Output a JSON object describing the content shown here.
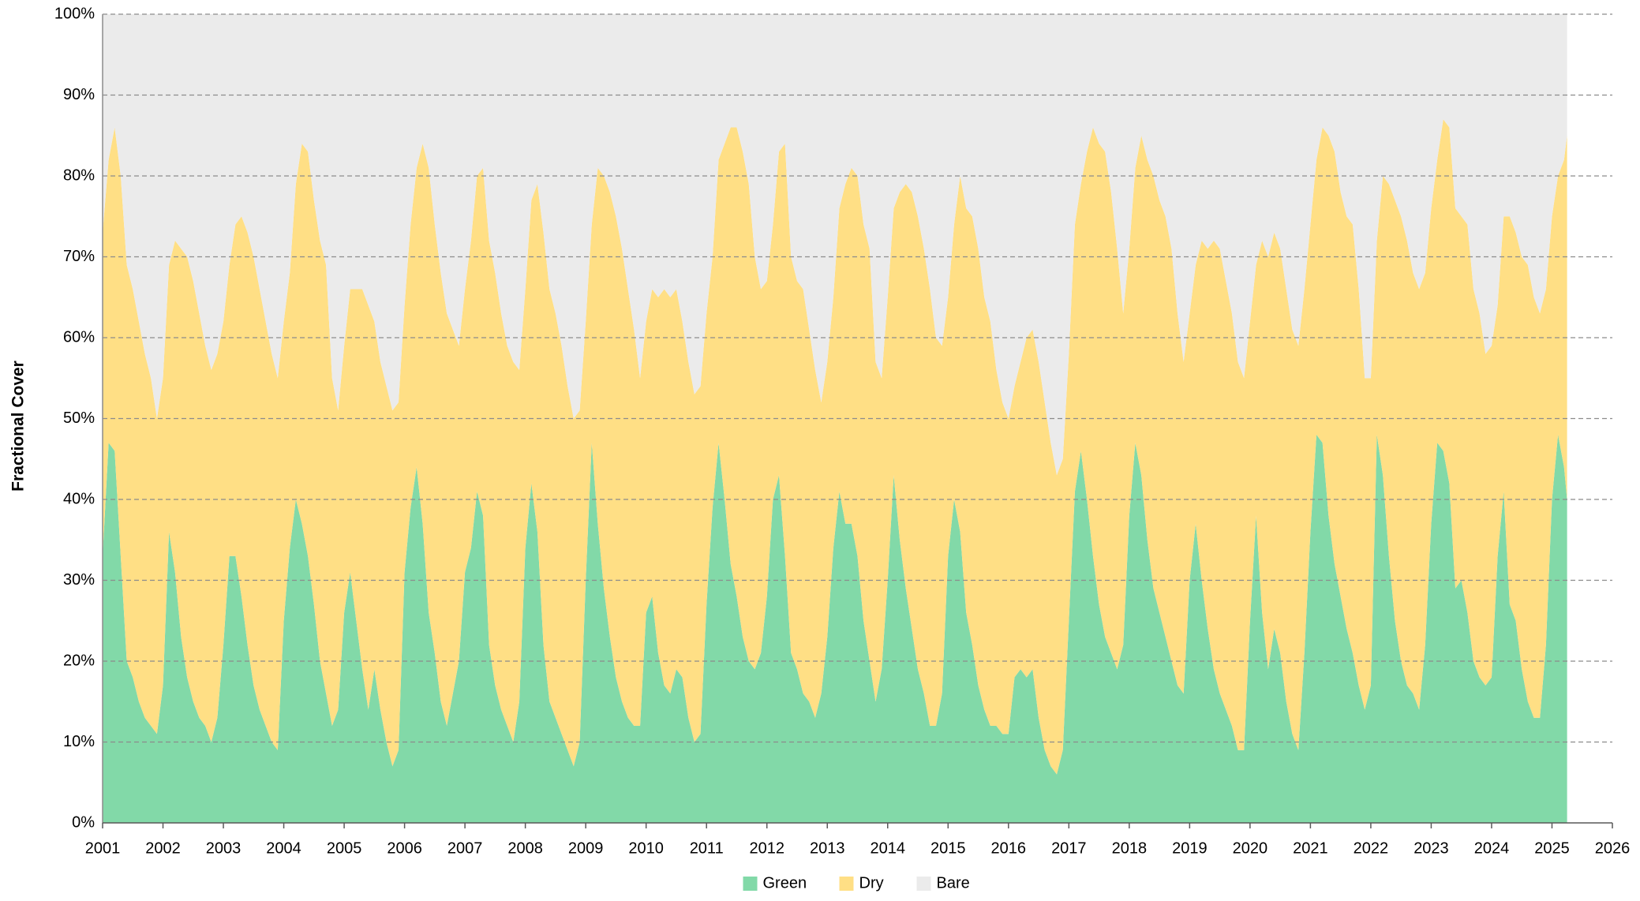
{
  "chart_data": {
    "type": "stacked_area",
    "y_label": "Fractional Cover",
    "x": [
      2001,
      2001.1,
      2001.2,
      2001.3,
      2001.4,
      2001.5,
      2001.6,
      2001.7,
      2001.8,
      2001.9,
      2002,
      2002.1,
      2002.2,
      2002.3,
      2002.4,
      2002.5,
      2002.6,
      2002.7,
      2002.8,
      2002.9,
      2003,
      2003.1,
      2003.2,
      2003.3,
      2003.4,
      2003.5,
      2003.6,
      2003.7,
      2003.8,
      2003.9,
      2004,
      2004.1,
      2004.2,
      2004.3,
      2004.4,
      2004.5,
      2004.6,
      2004.7,
      2004.8,
      2004.9,
      2005,
      2005.1,
      2005.2,
      2005.3,
      2005.4,
      2005.5,
      2005.6,
      2005.7,
      2005.8,
      2005.9,
      2006,
      2006.1,
      2006.2,
      2006.3,
      2006.4,
      2006.5,
      2006.6,
      2006.7,
      2006.8,
      2006.9,
      2007,
      2007.1,
      2007.2,
      2007.3,
      2007.4,
      2007.5,
      2007.6,
      2007.7,
      2007.8,
      2007.9,
      2008,
      2008.1,
      2008.2,
      2008.3,
      2008.4,
      2008.5,
      2008.6,
      2008.7,
      2008.8,
      2008.9,
      2009,
      2009.1,
      2009.2,
      2009.3,
      2009.4,
      2009.5,
      2009.6,
      2009.7,
      2009.8,
      2009.9,
      2010,
      2010.1,
      2010.2,
      2010.3,
      2010.4,
      2010.5,
      2010.6,
      2010.7,
      2010.8,
      2010.9,
      2011,
      2011.1,
      2011.2,
      2011.3,
      2011.4,
      2011.5,
      2011.6,
      2011.7,
      2011.8,
      2011.9,
      2012,
      2012.1,
      2012.2,
      2012.3,
      2012.4,
      2012.5,
      2012.6,
      2012.7,
      2012.8,
      2012.9,
      2013,
      2013.1,
      2013.2,
      2013.3,
      2013.4,
      2013.5,
      2013.6,
      2013.7,
      2013.8,
      2013.9,
      2014,
      2014.1,
      2014.2,
      2014.3,
      2014.4,
      2014.5,
      2014.6,
      2014.7,
      2014.8,
      2014.9,
      2015,
      2015.1,
      2015.2,
      2015.3,
      2015.4,
      2015.5,
      2015.6,
      2015.7,
      2015.8,
      2015.9,
      2016,
      2016.1,
      2016.2,
      2016.3,
      2016.4,
      2016.5,
      2016.6,
      2016.7,
      2016.8,
      2016.9,
      2017,
      2017.1,
      2017.2,
      2017.3,
      2017.4,
      2017.5,
      2017.6,
      2017.7,
      2017.8,
      2017.9,
      2018,
      2018.1,
      2018.2,
      2018.3,
      2018.4,
      2018.5,
      2018.6,
      2018.7,
      2018.8,
      2018.9,
      2019,
      2019.1,
      2019.2,
      2019.3,
      2019.4,
      2019.5,
      2019.6,
      2019.7,
      2019.8,
      2019.9,
      2020,
      2020.1,
      2020.2,
      2020.3,
      2020.4,
      2020.5,
      2020.6,
      2020.7,
      2020.8,
      2020.9,
      2021,
      2021.1,
      2021.2,
      2021.3,
      2021.4,
      2021.5,
      2021.6,
      2021.7,
      2021.8,
      2021.9,
      2022,
      2022.1,
      2022.2,
      2022.3,
      2022.4,
      2022.5,
      2022.6,
      2022.7,
      2022.8,
      2022.9,
      2023,
      2023.1,
      2023.2,
      2023.3,
      2023.4,
      2023.5,
      2023.6,
      2023.7,
      2023.8,
      2023.9,
      2024,
      2024.1,
      2024.2,
      2024.3,
      2024.4,
      2024.5,
      2024.6,
      2024.7,
      2024.8,
      2024.9,
      2025,
      2025.1,
      2025.2,
      2025.25
    ],
    "series": [
      {
        "name": "Green",
        "color": "#82d9a8",
        "values": [
          33,
          47,
          46,
          33,
          20,
          18,
          15,
          13,
          12,
          11,
          17,
          36,
          31,
          23,
          18,
          15,
          13,
          12,
          10,
          13,
          22,
          33,
          33,
          28,
          22,
          17,
          14,
          12,
          10,
          9,
          25,
          34,
          40,
          37,
          33,
          27,
          20,
          16,
          12,
          14,
          26,
          31,
          25,
          19,
          14,
          19,
          14,
          10,
          7,
          9,
          31,
          39,
          44,
          37,
          26,
          21,
          15,
          12,
          16,
          20,
          31,
          34,
          41,
          38,
          22,
          17,
          14,
          12,
          10,
          15,
          34,
          42,
          36,
          22,
          15,
          13,
          11,
          9,
          7,
          10,
          30,
          47,
          37,
          29,
          23,
          18,
          15,
          13,
          12,
          12,
          26,
          28,
          21,
          17,
          16,
          19,
          18,
          13,
          10,
          11,
          27,
          39,
          47,
          40,
          32,
          28,
          23,
          20,
          19,
          21,
          28,
          40,
          43,
          33,
          21,
          19,
          16,
          15,
          13,
          16,
          23,
          34,
          41,
          37,
          37,
          33,
          25,
          20,
          15,
          19,
          30,
          43,
          35,
          29,
          24,
          19,
          16,
          12,
          12,
          16,
          33,
          40,
          36,
          26,
          22,
          17,
          14,
          12,
          12,
          11,
          11,
          18,
          19,
          18,
          19,
          13,
          9,
          7,
          6,
          9,
          25,
          41,
          46,
          40,
          33,
          27,
          23,
          21,
          19,
          22,
          38,
          47,
          43,
          35,
          29,
          26,
          23,
          20,
          17,
          16,
          30,
          37,
          30,
          24,
          19,
          16,
          14,
          12,
          9,
          9,
          25,
          38,
          26,
          19,
          24,
          21,
          15,
          11,
          9,
          21,
          36,
          48,
          47,
          38,
          32,
          28,
          24,
          21,
          17,
          14,
          17,
          48,
          43,
          33,
          25,
          20,
          17,
          16,
          14,
          22,
          37,
          47,
          46,
          42,
          29,
          30,
          26,
          20,
          18,
          17,
          18,
          33,
          41,
          27,
          25,
          19,
          15,
          13,
          13,
          22,
          40,
          48,
          44,
          40
        ]
      },
      {
        "name": "Dry",
        "color": "#ffdf85",
        "values": [
          40,
          35,
          40,
          47,
          49,
          48,
          47,
          45,
          43,
          39,
          38,
          33,
          41,
          48,
          52,
          52,
          50,
          47,
          46,
          45,
          40,
          36,
          41,
          47,
          51,
          53,
          52,
          50,
          48,
          46,
          37,
          34,
          39,
          47,
          50,
          50,
          52,
          53,
          43,
          37,
          33,
          35,
          41,
          47,
          50,
          43,
          43,
          44,
          44,
          43,
          33,
          35,
          37,
          47,
          55,
          53,
          53,
          51,
          45,
          39,
          35,
          38,
          39,
          43,
          50,
          51,
          49,
          47,
          47,
          41,
          32,
          35,
          43,
          51,
          51,
          50,
          48,
          45,
          43,
          41,
          32,
          27,
          44,
          51,
          55,
          57,
          56,
          53,
          49,
          43,
          36,
          38,
          44,
          49,
          49,
          47,
          44,
          44,
          43,
          43,
          36,
          31,
          35,
          44,
          54,
          58,
          60,
          59,
          51,
          45,
          39,
          34,
          40,
          51,
          49,
          48,
          50,
          46,
          43,
          36,
          34,
          31,
          35,
          42,
          44,
          47,
          49,
          51,
          42,
          36,
          35,
          33,
          43,
          50,
          54,
          56,
          55,
          54,
          48,
          43,
          32,
          34,
          44,
          50,
          53,
          54,
          51,
          50,
          44,
          41,
          39,
          36,
          38,
          42,
          42,
          44,
          43,
          40,
          37,
          36,
          33,
          33,
          33,
          43,
          53,
          57,
          60,
          57,
          52,
          41,
          33,
          34,
          42,
          47,
          51,
          51,
          52,
          51,
          46,
          41,
          33,
          32,
          42,
          47,
          53,
          55,
          53,
          51,
          48,
          46,
          37,
          31,
          46,
          51,
          49,
          50,
          51,
          50,
          50,
          45,
          38,
          34,
          39,
          47,
          51,
          50,
          51,
          53,
          49,
          41,
          38,
          24,
          37,
          46,
          52,
          55,
          55,
          52,
          52,
          46,
          39,
          35,
          41,
          44,
          47,
          45,
          48,
          46,
          45,
          41,
          41,
          31,
          34,
          48,
          48,
          51,
          54,
          52,
          50,
          44,
          35,
          32,
          38,
          45
        ]
      },
      {
        "name": "Bare",
        "color": "#ebebeb",
        "values": [
          27,
          18,
          14,
          20,
          31,
          34,
          38,
          42,
          45,
          50,
          45,
          31,
          28,
          29,
          30,
          33,
          37,
          41,
          44,
          42,
          38,
          31,
          26,
          25,
          27,
          30,
          34,
          38,
          42,
          45,
          38,
          32,
          21,
          16,
          17,
          23,
          28,
          31,
          45,
          49,
          41,
          34,
          34,
          34,
          36,
          38,
          43,
          46,
          49,
          48,
          36,
          26,
          19,
          16,
          19,
          26,
          32,
          37,
          39,
          41,
          34,
          28,
          20,
          19,
          28,
          32,
          37,
          41,
          43,
          44,
          34,
          23,
          21,
          27,
          34,
          37,
          41,
          46,
          50,
          49,
          38,
          26,
          19,
          20,
          22,
          25,
          29,
          34,
          39,
          45,
          38,
          34,
          35,
          34,
          35,
          34,
          38,
          43,
          47,
          46,
          37,
          30,
          18,
          16,
          14,
          14,
          17,
          21,
          30,
          34,
          33,
          26,
          17,
          16,
          30,
          33,
          34,
          39,
          44,
          48,
          43,
          35,
          24,
          21,
          19,
          20,
          26,
          29,
          43,
          45,
          35,
          24,
          22,
          21,
          22,
          25,
          29,
          34,
          40,
          41,
          35,
          26,
          20,
          24,
          25,
          29,
          35,
          38,
          44,
          48,
          50,
          46,
          43,
          40,
          39,
          43,
          48,
          53,
          57,
          55,
          42,
          26,
          21,
          17,
          14,
          16,
          17,
          22,
          29,
          37,
          29,
          19,
          15,
          18,
          20,
          23,
          25,
          29,
          37,
          43,
          37,
          31,
          28,
          29,
          28,
          29,
          33,
          37,
          43,
          45,
          38,
          31,
          28,
          30,
          27,
          29,
          34,
          39,
          41,
          34,
          26,
          18,
          14,
          15,
          17,
          22,
          25,
          26,
          34,
          45,
          45,
          28,
          20,
          21,
          23,
          25,
          28,
          32,
          34,
          32,
          24,
          18,
          13,
          14,
          24,
          25,
          26,
          34,
          37,
          42,
          41,
          36,
          25,
          25,
          27,
          30,
          31,
          35,
          37,
          34,
          25,
          20,
          18,
          15
        ]
      }
    ],
    "xlim": [
      2001,
      2026
    ],
    "xticks": [
      2001,
      2002,
      2003,
      2004,
      2005,
      2006,
      2007,
      2008,
      2009,
      2010,
      2011,
      2012,
      2013,
      2014,
      2015,
      2016,
      2017,
      2018,
      2019,
      2020,
      2021,
      2022,
      2023,
      2024,
      2025,
      2026
    ],
    "ylim": [
      0,
      100
    ],
    "yticks": [
      {
        "value": 0,
        "label": "0%"
      },
      {
        "value": 10,
        "label": "10%"
      },
      {
        "value": 20,
        "label": "20%"
      },
      {
        "value": 30,
        "label": "30%"
      },
      {
        "value": 40,
        "label": "40%"
      },
      {
        "value": 50,
        "label": "50%"
      },
      {
        "value": 60,
        "label": "60%"
      },
      {
        "value": 70,
        "label": "70%"
      },
      {
        "value": 80,
        "label": "80%"
      },
      {
        "value": 90,
        "label": "90%"
      },
      {
        "value": 100,
        "label": "100%"
      }
    ],
    "grid": true,
    "legend": "bottom"
  }
}
